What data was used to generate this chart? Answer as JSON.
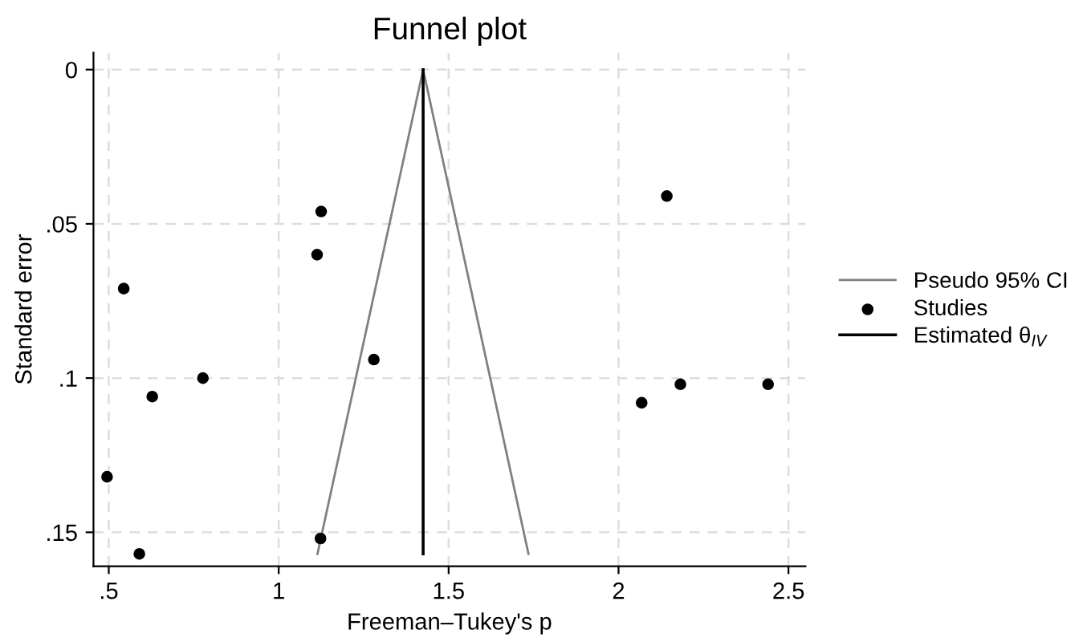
{
  "chart_data": {
    "type": "scatter",
    "title": "Funnel plot",
    "xlabel": "Freeman–Tukey's p",
    "ylabel": "Standard error",
    "series": [
      {
        "name": "Pseudo 95% CI",
        "type": "line",
        "color": "#808080",
        "x": [
          1.114,
          1.425,
          1.735
        ],
        "values": [
          0.157,
          0,
          0.157
        ]
      },
      {
        "name": "Studies",
        "marker": "circle",
        "color": "#000000",
        "x": [
          0.495,
          0.544,
          0.628,
          0.777,
          0.59,
          1.125,
          1.113,
          1.28,
          1.123,
          2.142,
          2.068,
          2.182,
          2.44
        ],
        "values": [
          0.132,
          0.071,
          0.106,
          0.1,
          0.157,
          0.046,
          0.06,
          0.094,
          0.152,
          0.041,
          0.108,
          0.102,
          0.102
        ]
      },
      {
        "name": "Estimated θ$_{IV}$",
        "type": "line",
        "color": "#000000",
        "x": [
          1.425,
          1.425
        ],
        "values": [
          0,
          0.157
        ]
      }
    ],
    "xlim": [
      0.455,
      2.55
    ],
    "ylim": [
      0.161,
      -0.0055
    ],
    "xticks": [
      {
        "value": 0.5,
        "label": ".5"
      },
      1,
      1.5,
      2,
      2.5
    ],
    "yticks": [
      0,
      {
        "value": 0.05,
        "label": ".05"
      },
      {
        "value": 0.1,
        "label": ".1"
      },
      {
        "value": 0.15,
        "label": ".15"
      }
    ],
    "grid": true,
    "legend": "right",
    "line_style": "solid"
  }
}
